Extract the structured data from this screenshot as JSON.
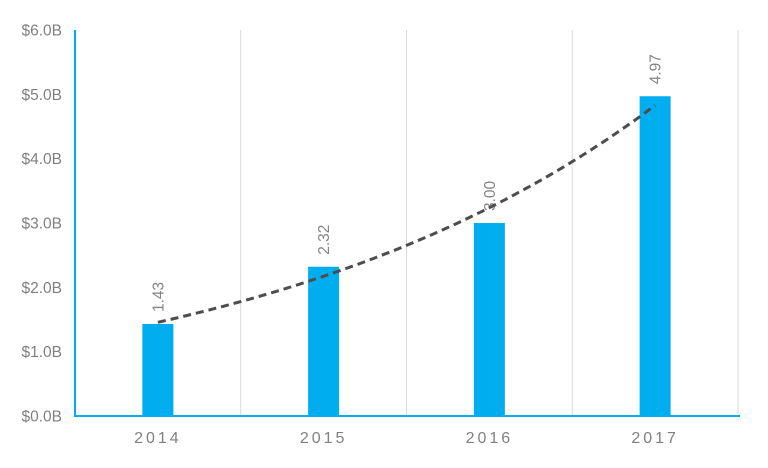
{
  "chart_data": {
    "type": "bar",
    "title": "",
    "categories": [
      "2014",
      "2015",
      "2016",
      "2017"
    ],
    "series": [
      {
        "name": "value",
        "values": [
          1.43,
          2.32,
          3.0,
          4.97
        ]
      }
    ],
    "data_labels": [
      "1.43",
      "2.32",
      "3.00",
      "4.97"
    ],
    "xlabel": "",
    "ylabel": "",
    "ylim": [
      0,
      6
    ],
    "ytick_step": 1,
    "ytick_labels": [
      "$0.0B",
      "$1.0B",
      "$2.0B",
      "$3.0B",
      "$4.0B",
      "$5.0B",
      "$6.0B"
    ],
    "grid": "vertical-only",
    "legend": "none",
    "trendline": {
      "type": "exponential",
      "style": "dashed"
    },
    "colors": {
      "bar": "#00AEEF",
      "axis": "#00AEEF",
      "gridline": "#D9D9D9",
      "trendline": "#4D4D4D",
      "tick_label": "#808080",
      "data_label": "#848484"
    }
  }
}
